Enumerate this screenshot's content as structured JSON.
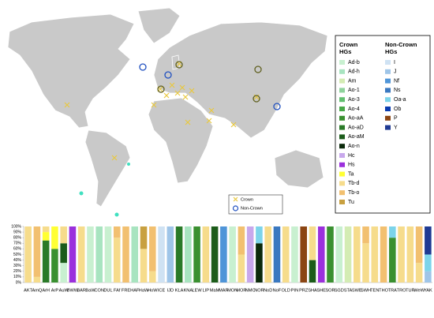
{
  "chart_data": {
    "type": "stacked_bar",
    "map_legend": [
      "Crown",
      "Non-Crown"
    ],
    "categories": [
      "AKT",
      "AmQ",
      "ArH",
      "ArP",
      "AuW",
      "BWW",
      "BAR",
      "BaW",
      "CON",
      "DUL",
      "FAf",
      "FRE",
      "HAF",
      "HaW",
      "HoW",
      "ICE",
      "IJD",
      "KLA",
      "KNA",
      "LEW",
      "LIP",
      "MaM",
      "MAR",
      "MON",
      "MOR",
      "NMC",
      "NOR",
      "NoD",
      "NoF",
      "OLD",
      "PIN",
      "PRZ",
      "SHA",
      "SHE",
      "SOR",
      "SGD",
      "STA",
      "SWE",
      "SWH",
      "TEN",
      "THO",
      "TRA",
      "TRO",
      "TUR",
      "WeW",
      "YAK"
    ],
    "ylim": [
      0,
      100
    ],
    "yticks": [
      {
        "value": 0,
        "label": "0%"
      },
      {
        "value": 10,
        "label": "10%"
      },
      {
        "value": 20,
        "label": "20%"
      },
      {
        "value": 30,
        "label": "30%"
      },
      {
        "value": 40,
        "label": "40%"
      },
      {
        "value": 50,
        "label": "50%"
      },
      {
        "value": 60,
        "label": "60%"
      },
      {
        "value": 70,
        "label": "70%"
      },
      {
        "value": 80,
        "label": "80%"
      },
      {
        "value": 90,
        "label": "90%"
      },
      {
        "value": 100,
        "label": "100%"
      }
    ],
    "series": [
      {
        "name": "Ad-b",
        "group": "Crown HGs",
        "color": "#c8f0d0",
        "values": [
          0,
          0,
          0,
          0,
          35,
          0,
          0,
          100,
          0,
          100,
          0,
          0,
          0,
          0,
          0,
          0,
          0,
          0,
          0,
          0,
          0,
          0,
          0,
          100,
          0,
          0,
          0,
          0,
          0,
          0,
          100,
          0,
          0,
          0,
          0,
          100,
          0,
          0,
          0,
          0,
          0,
          0,
          0,
          0,
          0,
          0
        ]
      },
      {
        "name": "Ad-h",
        "group": "Crown HGs",
        "color": "#a8e4c0",
        "values": [
          0,
          0,
          0,
          0,
          0,
          0,
          0,
          0,
          100,
          0,
          0,
          0,
          100,
          0,
          0,
          0,
          0,
          0,
          100,
          0,
          0,
          0,
          0,
          0,
          0,
          0,
          0,
          0,
          0,
          0,
          0,
          0,
          0,
          0,
          0,
          0,
          0,
          0,
          0,
          0,
          0,
          0,
          0,
          0,
          0,
          0
        ]
      },
      {
        "name": "Am",
        "group": "Crown HGs",
        "color": "#d4ecb4",
        "values": [
          0,
          0,
          0,
          0,
          0,
          0,
          0,
          0,
          0,
          0,
          0,
          0,
          0,
          0,
          0,
          0,
          0,
          0,
          0,
          0,
          0,
          0,
          0,
          0,
          0,
          0,
          0,
          0,
          0,
          0,
          0,
          0,
          0,
          0,
          0,
          0,
          100,
          0,
          0,
          0,
          0,
          0,
          0,
          0,
          0,
          0
        ]
      },
      {
        "name": "Ao-1",
        "group": "Crown HGs",
        "color": "#8fd39c",
        "values": [
          0,
          0,
          0,
          0,
          0,
          0,
          0,
          0,
          0,
          0,
          0,
          0,
          0,
          0,
          0,
          0,
          0,
          0,
          0,
          0,
          0,
          0,
          0,
          0,
          0,
          0,
          0,
          0,
          0,
          0,
          0,
          0,
          0,
          0,
          0,
          0,
          0,
          0,
          0,
          0,
          0,
          0,
          0,
          0,
          0,
          0
        ]
      },
      {
        "name": "Ao-3",
        "group": "Crown HGs",
        "color": "#62bf70",
        "values": [
          0,
          0,
          0,
          0,
          0,
          0,
          0,
          0,
          0,
          0,
          0,
          0,
          0,
          0,
          0,
          0,
          0,
          0,
          0,
          0,
          0,
          0,
          0,
          0,
          0,
          0,
          0,
          0,
          0,
          0,
          0,
          0,
          0,
          0,
          0,
          0,
          0,
          0,
          0,
          0,
          0,
          0,
          0,
          0,
          0,
          0
        ]
      },
      {
        "name": "Ao-4",
        "group": "Crown HGs",
        "color": "#48a848",
        "values": [
          0,
          0,
          0,
          0,
          0,
          0,
          0,
          0,
          0,
          0,
          0,
          0,
          0,
          0,
          0,
          0,
          0,
          0,
          0,
          0,
          0,
          0,
          0,
          0,
          0,
          0,
          0,
          0,
          0,
          0,
          0,
          0,
          0,
          0,
          0,
          0,
          0,
          0,
          0,
          0,
          0,
          0,
          0,
          0,
          0,
          0
        ]
      },
      {
        "name": "Ao-aA",
        "group": "Crown HGs",
        "color": "#3a9030",
        "values": [
          0,
          0,
          0,
          60,
          0,
          0,
          0,
          0,
          0,
          0,
          0,
          0,
          0,
          0,
          0,
          0,
          0,
          0,
          0,
          100,
          0,
          0,
          0,
          0,
          0,
          0,
          0,
          0,
          0,
          0,
          0,
          0,
          0,
          0,
          100,
          0,
          0,
          0,
          0,
          0,
          0,
          80,
          0,
          0,
          0,
          0
        ]
      },
      {
        "name": "Ao-aD",
        "group": "Crown HGs",
        "color": "#2a7a28",
        "values": [
          0,
          0,
          75,
          0,
          0,
          0,
          0,
          0,
          0,
          0,
          0,
          0,
          0,
          0,
          0,
          0,
          0,
          100,
          0,
          0,
          0,
          0,
          0,
          0,
          0,
          0,
          0,
          0,
          0,
          0,
          0,
          0,
          0,
          0,
          0,
          0,
          0,
          0,
          0,
          0,
          0,
          0,
          0,
          0,
          0,
          0
        ]
      },
      {
        "name": "Ao-aM",
        "group": "Crown HGs",
        "color": "#1c5c1a",
        "values": [
          0,
          0,
          0,
          0,
          35,
          0,
          0,
          0,
          0,
          0,
          0,
          0,
          0,
          0,
          0,
          0,
          0,
          0,
          0,
          0,
          0,
          100,
          0,
          0,
          0,
          0,
          0,
          0,
          0,
          0,
          0,
          0,
          40,
          0,
          0,
          0,
          0,
          0,
          0,
          0,
          0,
          0,
          0,
          0,
          0,
          0
        ]
      },
      {
        "name": "Ao-n",
        "group": "Crown HGs",
        "color": "#0c2a0c",
        "values": [
          0,
          0,
          0,
          0,
          0,
          0,
          0,
          0,
          0,
          0,
          0,
          0,
          0,
          0,
          0,
          0,
          0,
          0,
          0,
          0,
          0,
          0,
          0,
          0,
          0,
          0,
          70,
          0,
          0,
          0,
          0,
          0,
          0,
          0,
          0,
          0,
          0,
          0,
          0,
          0,
          0,
          0,
          0,
          0,
          0,
          0
        ]
      },
      {
        "name": "Hc",
        "group": "Crown HGs",
        "color": "#c8a8ec",
        "values": [
          0,
          0,
          0,
          0,
          0,
          0,
          0,
          0,
          0,
          0,
          0,
          0,
          0,
          0,
          0,
          0,
          0,
          0,
          0,
          0,
          0,
          0,
          0,
          0,
          0,
          100,
          0,
          0,
          0,
          0,
          0,
          0,
          0,
          0,
          0,
          0,
          0,
          0,
          0,
          0,
          0,
          0,
          0,
          0,
          0,
          0
        ]
      },
      {
        "name": "Hs",
        "group": "Crown HGs",
        "color": "#9b30dc",
        "values": [
          0,
          0,
          0,
          0,
          0,
          100,
          0,
          0,
          0,
          0,
          0,
          0,
          0,
          0,
          0,
          0,
          0,
          0,
          0,
          0,
          0,
          0,
          0,
          0,
          0,
          0,
          0,
          0,
          0,
          0,
          0,
          0,
          0,
          100,
          0,
          0,
          0,
          0,
          0,
          0,
          0,
          0,
          0,
          0,
          0,
          0
        ]
      },
      {
        "name": "Ta",
        "group": "Crown HGs",
        "color": "#ffff33",
        "values": [
          0,
          0,
          15,
          40,
          0,
          0,
          0,
          0,
          0,
          0,
          0,
          0,
          0,
          0,
          0,
          0,
          0,
          0,
          0,
          0,
          0,
          0,
          0,
          0,
          0,
          0,
          0,
          0,
          0,
          0,
          0,
          0,
          0,
          0,
          0,
          0,
          0,
          0,
          0,
          0,
          0,
          0,
          0,
          0,
          0,
          0
        ]
      },
      {
        "name": "Tb-d",
        "group": "Crown HGs",
        "color": "#f6dc8c",
        "values": [
          100,
          10,
          10,
          0,
          30,
          0,
          100,
          0,
          0,
          0,
          80,
          0,
          0,
          60,
          20,
          0,
          0,
          0,
          0,
          0,
          100,
          0,
          0,
          0,
          50,
          0,
          0,
          100,
          0,
          100,
          0,
          0,
          60,
          0,
          0,
          0,
          0,
          100,
          70,
          100,
          0,
          0,
          100,
          100,
          35,
          0
        ]
      },
      {
        "name": "Tb-o",
        "group": "Crown HGs",
        "color": "#f2c070",
        "values": [
          0,
          90,
          0,
          0,
          0,
          0,
          0,
          0,
          0,
          0,
          20,
          100,
          0,
          0,
          80,
          0,
          0,
          0,
          0,
          0,
          0,
          0,
          0,
          0,
          50,
          0,
          0,
          0,
          0,
          0,
          0,
          0,
          0,
          0,
          0,
          0,
          0,
          0,
          30,
          0,
          100,
          0,
          0,
          0,
          65,
          0
        ]
      },
      {
        "name": "Tu",
        "group": "Crown HGs",
        "color": "#c8a040",
        "values": [
          0,
          0,
          0,
          0,
          0,
          0,
          0,
          0,
          0,
          0,
          0,
          0,
          0,
          40,
          0,
          0,
          0,
          0,
          0,
          0,
          0,
          0,
          0,
          0,
          0,
          0,
          0,
          0,
          0,
          0,
          0,
          0,
          0,
          0,
          0,
          0,
          0,
          0,
          0,
          0,
          0,
          0,
          0,
          0,
          0,
          0
        ]
      },
      {
        "name": "I",
        "group": "Non-Crown HGs",
        "color": "#cfe2f3",
        "values": [
          0,
          0,
          0,
          0,
          0,
          0,
          0,
          0,
          0,
          0,
          0,
          0,
          0,
          0,
          0,
          100,
          0,
          0,
          0,
          0,
          0,
          0,
          0,
          0,
          0,
          0,
          0,
          0,
          0,
          0,
          0,
          0,
          0,
          0,
          0,
          0,
          0,
          0,
          0,
          0,
          0,
          0,
          0,
          0,
          0,
          0
        ]
      },
      {
        "name": "J",
        "group": "Non-Crown HGs",
        "color": "#9fc5e8",
        "values": [
          0,
          0,
          0,
          0,
          0,
          0,
          0,
          0,
          0,
          0,
          0,
          0,
          0,
          0,
          0,
          0,
          100,
          0,
          0,
          0,
          0,
          0,
          0,
          0,
          0,
          0,
          0,
          0,
          0,
          0,
          0,
          0,
          0,
          0,
          0,
          0,
          0,
          0,
          0,
          0,
          0,
          0,
          0,
          0,
          0,
          20
        ]
      },
      {
        "name": "Nf",
        "group": "Non-Crown HGs",
        "color": "#4f95d8",
        "values": [
          0,
          0,
          0,
          0,
          0,
          0,
          0,
          0,
          0,
          0,
          0,
          0,
          0,
          0,
          0,
          0,
          0,
          0,
          0,
          0,
          0,
          0,
          100,
          0,
          0,
          0,
          0,
          0,
          0,
          0,
          0,
          0,
          0,
          0,
          0,
          0,
          0,
          0,
          0,
          0,
          0,
          0,
          0,
          0,
          0,
          0
        ]
      },
      {
        "name": "Ns",
        "group": "Non-Crown HGs",
        "color": "#3a78c0",
        "values": [
          0,
          0,
          0,
          0,
          0,
          0,
          0,
          0,
          0,
          0,
          0,
          0,
          0,
          0,
          0,
          0,
          0,
          0,
          0,
          0,
          0,
          0,
          0,
          0,
          0,
          0,
          0,
          0,
          100,
          0,
          0,
          0,
          0,
          0,
          0,
          0,
          0,
          0,
          0,
          0,
          0,
          0,
          0,
          0,
          0,
          0
        ]
      },
      {
        "name": "Oa-a",
        "group": "Non-Crown HGs",
        "color": "#7cd4ea",
        "values": [
          0,
          0,
          0,
          0,
          0,
          0,
          0,
          0,
          0,
          0,
          0,
          0,
          0,
          0,
          0,
          0,
          0,
          0,
          0,
          0,
          0,
          0,
          0,
          0,
          0,
          0,
          30,
          0,
          0,
          0,
          0,
          0,
          0,
          0,
          0,
          0,
          0,
          0,
          0,
          0,
          0,
          20,
          0,
          0,
          0,
          30
        ]
      },
      {
        "name": "Ob",
        "group": "Non-Crown HGs",
        "color": "#0a3cb0",
        "values": [
          0,
          0,
          0,
          0,
          0,
          0,
          0,
          0,
          0,
          0,
          0,
          0,
          0,
          0,
          0,
          0,
          0,
          0,
          0,
          0,
          0,
          0,
          0,
          0,
          0,
          0,
          0,
          0,
          0,
          0,
          0,
          0,
          0,
          0,
          0,
          0,
          0,
          0,
          0,
          0,
          0,
          0,
          0,
          0,
          0,
          0
        ]
      },
      {
        "name": "P",
        "group": "Non-Crown HGs",
        "color": "#8b4513",
        "values": [
          0,
          0,
          0,
          0,
          0,
          0,
          0,
          0,
          0,
          0,
          0,
          0,
          0,
          0,
          0,
          0,
          0,
          0,
          0,
          0,
          0,
          0,
          0,
          0,
          0,
          0,
          0,
          0,
          0,
          0,
          0,
          100,
          0,
          0,
          0,
          0,
          0,
          0,
          0,
          0,
          0,
          0,
          0,
          0,
          0,
          0
        ]
      },
      {
        "name": "Y",
        "group": "Non-Crown HGs",
        "color": "#1f3a93",
        "values": [
          0,
          0,
          0,
          0,
          0,
          0,
          0,
          0,
          0,
          0,
          0,
          0,
          0,
          0,
          0,
          0,
          0,
          0,
          0,
          0,
          0,
          0,
          0,
          0,
          0,
          0,
          0,
          0,
          0,
          0,
          0,
          0,
          0,
          0,
          0,
          0,
          0,
          0,
          0,
          0,
          0,
          0,
          0,
          0,
          0,
          50
        ]
      }
    ]
  }
}
